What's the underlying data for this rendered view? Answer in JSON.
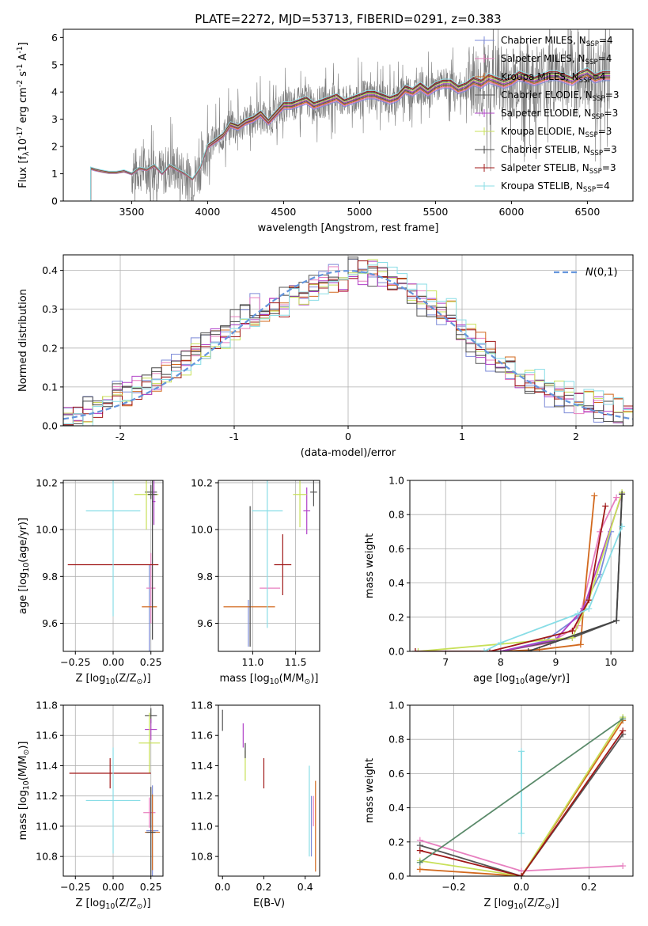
{
  "figure_title": "PLATE=2272, MJD=53713, FIBERID=0291, z=0.383",
  "colors": {
    "Chabrier MILES": "#7d8bd8",
    "Salpeter MILES": "#e77fbf",
    "Kroupa MILES": "#d2691e",
    "Chabrier ELODIE": "#555555",
    "Salpeter ELODIE": "#b040c8",
    "Kroupa ELODIE": "#c8e058",
    "Chabrier STELIB": "#444444",
    "Salpeter STELIB": "#a01818",
    "Kroupa STELIB": "#88dde6",
    "gauss": "#6495dc",
    "data": "#7a7a7a",
    "extra": "#5a8a6a"
  },
  "chart_data": [
    {
      "id": "spectrum",
      "type": "line",
      "xlabel": "wavelength [Angstrom, rest frame]",
      "ylabel": "Flux [f$_\\lambda$10$^{-17}$ erg cm$^{-2}$ s$^{-1}$ A$^{-1}$]",
      "xlim": [
        3050,
        6800
      ],
      "ylim": [
        0,
        6.3
      ],
      "xticks": [
        3500,
        4000,
        4500,
        5000,
        5500,
        6000,
        6500
      ],
      "yticks": [
        0,
        1,
        2,
        3,
        4,
        5,
        6
      ],
      "grid": false,
      "legend": "upper right",
      "legend_entries": [
        "Chabrier MILES, N$_{SSP}$=4",
        "Salpeter MILES, N$_{SSP}$=4",
        "Kroupa MILES, N$_{SSP}$=4",
        "Chabrier ELODIE, N$_{SSP}$=3",
        "Salpeter ELODIE, N$_{SSP}$=3",
        "Kroupa ELODIE, N$_{SSP}$=3",
        "Chabrier STELIB, N$_{SSP}$=3",
        "Salpeter STELIB, N$_{SSP}$=3",
        "Kroupa STELIB, N$_{SSP}$=4"
      ],
      "model_continuum": {
        "x": [
          3230,
          3260,
          3300,
          3350,
          3400,
          3450,
          3500,
          3550,
          3600,
          3650,
          3700,
          3750,
          3800,
          3850,
          3900,
          3950,
          4000,
          4050,
          4100,
          4150,
          4200,
          4250,
          4300,
          4350,
          4400,
          4450,
          4500,
          4550,
          4600,
          4650,
          4700,
          4750,
          4800,
          4850,
          4900,
          4950,
          5000,
          5050,
          5100,
          5150,
          5200,
          5250,
          5300,
          5350,
          5400,
          5450,
          5500,
          5550,
          5600,
          5650,
          5700,
          5750,
          5800,
          5850,
          5900,
          5950,
          6000,
          6050,
          6100,
          6150,
          6200,
          6250,
          6300,
          6350,
          6400,
          6450,
          6500,
          6550,
          6600,
          6650
        ],
        "y": [
          1.2,
          1.15,
          1.1,
          1.05,
          1.05,
          1.1,
          1.0,
          1.2,
          1.15,
          1.3,
          1.0,
          1.3,
          1.15,
          1.0,
          0.8,
          1.2,
          2.0,
          2.2,
          2.4,
          2.8,
          2.7,
          2.9,
          3.0,
          3.2,
          2.9,
          3.2,
          3.5,
          3.5,
          3.6,
          3.7,
          3.5,
          3.6,
          3.7,
          3.8,
          3.6,
          3.7,
          3.8,
          3.9,
          3.9,
          3.8,
          3.7,
          3.8,
          4.1,
          4.0,
          4.2,
          4.0,
          4.2,
          4.3,
          4.3,
          4.1,
          4.2,
          4.4,
          4.3,
          4.5,
          4.4,
          4.3,
          4.4,
          4.6,
          4.5,
          4.4,
          4.5,
          4.6,
          4.6,
          4.5,
          4.4,
          4.6,
          4.7,
          4.5,
          4.6,
          4.6
        ]
      }
    },
    {
      "id": "residuals",
      "type": "line",
      "xlabel": "(data-model)/error",
      "ylabel": "Normed distribution",
      "xlim": [
        -2.5,
        2.5
      ],
      "ylim": [
        0,
        0.44
      ],
      "xticks": [
        -2,
        -1,
        0,
        1,
        2
      ],
      "yticks": [
        0.0,
        0.1,
        0.2,
        0.3,
        0.4
      ],
      "grid": true,
      "legend": "upper right",
      "gauss_label": "$\\mathcal{N}(0,1)$",
      "hist_base": [
        0.02,
        0.03,
        0.04,
        0.05,
        0.07,
        0.08,
        0.09,
        0.1,
        0.11,
        0.12,
        0.14,
        0.15,
        0.17,
        0.2,
        0.21,
        0.23,
        0.24,
        0.26,
        0.28,
        0.3,
        0.3,
        0.31,
        0.32,
        0.35,
        0.34,
        0.37,
        0.36,
        0.38,
        0.37,
        0.4,
        0.39,
        0.4,
        0.38,
        0.37,
        0.36,
        0.34,
        0.32,
        0.31,
        0.29,
        0.28,
        0.24,
        0.22,
        0.2,
        0.18,
        0.16,
        0.14,
        0.12,
        0.11,
        0.1,
        0.09,
        0.08,
        0.07,
        0.06,
        0.05,
        0.045,
        0.04,
        0.035,
        0.03
      ]
    },
    {
      "id": "age_vs_Z",
      "type": "scatter",
      "xlabel": "Z [log$_{10}$(Z/Z$_\\odot$)]",
      "ylabel": "age  [log$_{10}$(age/yr)]",
      "xlim": [
        -0.33,
        0.33
      ],
      "ylim": [
        9.48,
        10.21
      ],
      "xticks": [
        -0.25,
        0.0,
        0.25
      ],
      "xticklabels": [
        "−0.25",
        "0.00",
        "0.25"
      ],
      "yticks": [
        9.6,
        9.8,
        10.0,
        10.2
      ],
      "grid": true,
      "points": [
        {
          "model": "Chabrier MILES",
          "x": 0.24,
          "y": 9.65,
          "xerr": 0.0,
          "yerr": 0.2
        },
        {
          "model": "Salpeter MILES",
          "x": 0.25,
          "y": 9.75,
          "xerr": 0.03,
          "yerr": 0.15
        },
        {
          "model": "Kroupa MILES",
          "x": 0.24,
          "y": 9.67,
          "xerr": 0.05,
          "yerr": 0.0
        },
        {
          "model": "Chabrier ELODIE",
          "x": 0.25,
          "y": 10.16,
          "xerr": 0.04,
          "yerr": 0.03
        },
        {
          "model": "Salpeter ELODIE",
          "x": 0.27,
          "y": 10.12,
          "xerr": 0.01,
          "yerr": 0.1
        },
        {
          "model": "Kroupa ELODIE",
          "x": 0.22,
          "y": 10.15,
          "xerr": 0.08,
          "yerr": 0.15
        },
        {
          "model": "Chabrier STELIB",
          "x": 0.26,
          "y": 10.15,
          "xerr": 0.03,
          "yerr": 0.62
        },
        {
          "model": "Salpeter STELIB",
          "x": 0.0,
          "y": 9.85,
          "xerr": 0.3,
          "yerr": 0.0
        },
        {
          "model": "Kroupa STELIB",
          "x": 0.0,
          "y": 10.08,
          "xerr": 0.18,
          "yerr": 0.45
        }
      ]
    },
    {
      "id": "age_vs_mass",
      "type": "scatter",
      "xlabel": "mass [log$_{10}$(M/M$_\\odot$)]",
      "ylabel": "",
      "xlim": [
        10.6,
        11.78
      ],
      "ylim": [
        9.48,
        10.21
      ],
      "xticks": [
        11.0,
        11.5
      ],
      "xticklabels": [
        "11.0",
        "11.5"
      ],
      "yticks": [
        9.6,
        9.8,
        10.0,
        10.2
      ],
      "grid": true,
      "points": [
        {
          "model": "Chabrier MILES",
          "x": 10.95,
          "y": 9.6,
          "xerr": 0.0,
          "yerr": 0.1
        },
        {
          "model": "Salpeter MILES",
          "x": 11.2,
          "y": 9.75,
          "xerr": 0.12,
          "yerr": 0.0
        },
        {
          "model": "Kroupa MILES",
          "x": 10.96,
          "y": 9.67,
          "xerr": 0.3,
          "yerr": 0.0
        },
        {
          "model": "Chabrier ELODIE",
          "x": 11.71,
          "y": 10.16,
          "xerr": 0.04,
          "yerr": 0.06
        },
        {
          "model": "Salpeter ELODIE",
          "x": 11.63,
          "y": 10.08,
          "xerr": 0.04,
          "yerr": 0.1
        },
        {
          "model": "Kroupa ELODIE",
          "x": 11.55,
          "y": 10.15,
          "xerr": 0.08,
          "yerr": 0.14
        },
        {
          "model": "Chabrier STELIB",
          "x": 10.97,
          "y": 9.8,
          "xerr": 0.0,
          "yerr": 0.3
        },
        {
          "model": "Salpeter STELIB",
          "x": 11.35,
          "y": 9.85,
          "xerr": 0.1,
          "yerr": 0.13
        },
        {
          "model": "Kroupa STELIB",
          "x": 11.17,
          "y": 10.08,
          "xerr": 0.18,
          "yerr": 0.5
        }
      ]
    },
    {
      "id": "cum_mass_weight_age",
      "type": "line",
      "xlabel": "age  [log$_{10}$(age/yr)]",
      "ylabel": "mass weight",
      "xlim": [
        6.35,
        10.4
      ],
      "ylim": [
        0,
        1.0
      ],
      "xticks": [
        7,
        8,
        9,
        10
      ],
      "yticks": [
        0.0,
        0.2,
        0.4,
        0.6,
        0.8,
        1.0
      ],
      "grid": true,
      "series": [
        {
          "model": "Chabrier MILES",
          "x": [
            8.0,
            8.8,
            9.4,
            9.8,
            10.0
          ],
          "y": [
            0.0,
            0.06,
            0.2,
            0.45,
            0.7
          ]
        },
        {
          "model": "Salpeter MILES",
          "x": [
            8.0,
            8.9,
            9.4,
            9.8,
            10.1
          ],
          "y": [
            0.0,
            0.05,
            0.15,
            0.7,
            0.9
          ]
        },
        {
          "model": "Kroupa MILES",
          "x": [
            8.0,
            8.7,
            9.45,
            9.5,
            9.7
          ],
          "y": [
            0.0,
            0.01,
            0.04,
            0.25,
            0.91
          ]
        },
        {
          "model": "Chabrier ELODIE",
          "x": [
            8.0,
            9.3,
            10.1,
            10.2
          ],
          "y": [
            0.0,
            0.08,
            0.18,
            0.92
          ]
        },
        {
          "model": "Salpeter ELODIE",
          "x": [
            8.0,
            9.0,
            9.5,
            10.2
          ],
          "y": [
            0.0,
            0.07,
            0.25,
            0.92
          ]
        },
        {
          "model": "Kroupa ELODIE",
          "x": [
            6.5,
            9.3,
            9.6,
            10.2
          ],
          "y": [
            0.0,
            0.08,
            0.3,
            0.93
          ]
        },
        {
          "model": "Chabrier STELIB",
          "x": [
            6.45,
            8.5,
            10.1,
            10.2
          ],
          "y": [
            0.0,
            0.0,
            0.18,
            0.92
          ]
        },
        {
          "model": "Salpeter STELIB",
          "x": [
            6.45,
            7.8,
            9.3,
            9.6,
            9.9
          ],
          "y": [
            0.0,
            0.0,
            0.12,
            0.3,
            0.85
          ]
        },
        {
          "model": "Kroupa STELIB",
          "x": [
            7.7,
            8.0,
            9.4,
            9.6,
            10.2
          ],
          "y": [
            0.0,
            0.05,
            0.22,
            0.25,
            0.73
          ]
        }
      ]
    },
    {
      "id": "mass_vs_Z",
      "type": "scatter",
      "xlabel": "Z [log$_{10}$(Z/Z$_\\odot$)]",
      "ylabel": "mass [log$_{10}$(M/M$_\\odot$)]",
      "xlim": [
        -0.33,
        0.33
      ],
      "ylim": [
        10.67,
        11.8
      ],
      "xticks": [
        -0.25,
        0.0,
        0.25
      ],
      "xticklabels": [
        "−0.25",
        "0.00",
        "0.25"
      ],
      "yticks": [
        10.8,
        11.0,
        11.2,
        11.4,
        11.6,
        11.8
      ],
      "grid": true,
      "points": [
        {
          "model": "Chabrier MILES",
          "x": 0.26,
          "y": 10.97,
          "xerr": 0.04,
          "yerr": 0.3
        },
        {
          "model": "Salpeter MILES",
          "x": 0.24,
          "y": 11.09,
          "xerr": 0.04,
          "yerr": 0.1
        },
        {
          "model": "Kroupa MILES",
          "x": 0.26,
          "y": 10.96,
          "xerr": 0.05,
          "yerr": 0.25
        },
        {
          "model": "Chabrier ELODIE",
          "x": 0.25,
          "y": 11.73,
          "xerr": 0.04,
          "yerr": 0.05
        },
        {
          "model": "Salpeter ELODIE",
          "x": 0.25,
          "y": 11.64,
          "xerr": 0.04,
          "yerr": 0.07
        },
        {
          "model": "Kroupa ELODIE",
          "x": 0.24,
          "y": 11.55,
          "xerr": 0.07,
          "yerr": 0.2
        },
        {
          "model": "Chabrier STELIB",
          "x": 0.25,
          "y": 10.96,
          "xerr": 0.03,
          "yerr": 0.3
        },
        {
          "model": "Salpeter STELIB",
          "x": -0.02,
          "y": 11.35,
          "xerr": 0.27,
          "yerr": 0.1
        },
        {
          "model": "Kroupa STELIB",
          "x": 0.0,
          "y": 11.17,
          "xerr": 0.18,
          "yerr": 0.35
        }
      ]
    },
    {
      "id": "mass_vs_EBV",
      "type": "scatter",
      "xlabel": "E(B-V)",
      "ylabel": "",
      "xlim": [
        -0.02,
        0.47
      ],
      "ylim": [
        10.67,
        11.8
      ],
      "xticks": [
        0.0,
        0.2,
        0.4
      ],
      "xticklabels": [
        "0.0",
        "0.2",
        "0.4"
      ],
      "yticks": [
        10.8,
        11.0,
        11.2,
        11.4,
        11.6,
        11.8
      ],
      "grid": false,
      "points": [
        {
          "model": "Chabrier MILES",
          "x": 0.43,
          "y": 11.0,
          "xerr": 0.0,
          "yerr": 0.2
        },
        {
          "model": "Salpeter MILES",
          "x": 0.44,
          "y": 11.1,
          "xerr": 0.0,
          "yerr": 0.1
        },
        {
          "model": "Kroupa MILES",
          "x": 0.45,
          "y": 11.0,
          "xerr": 0.0,
          "yerr": 0.3
        },
        {
          "model": "Chabrier ELODIE",
          "x": 0.0,
          "y": 11.7,
          "xerr": 0.0,
          "yerr": 0.07
        },
        {
          "model": "Salpeter ELODIE",
          "x": 0.1,
          "y": 11.6,
          "xerr": 0.0,
          "yerr": 0.08
        },
        {
          "model": "Kroupa ELODIE",
          "x": 0.11,
          "y": 11.4,
          "xerr": 0.0,
          "yerr": 0.1
        },
        {
          "model": "Chabrier STELIB",
          "x": 0.11,
          "y": 11.5,
          "xerr": 0.0,
          "yerr": 0.05
        },
        {
          "model": "Salpeter STELIB",
          "x": 0.2,
          "y": 11.35,
          "xerr": 0.0,
          "yerr": 0.1
        },
        {
          "model": "Kroupa STELIB",
          "x": 0.42,
          "y": 11.1,
          "xerr": 0.0,
          "yerr": 0.3
        }
      ]
    },
    {
      "id": "cum_mass_weight_Z",
      "type": "line",
      "xlabel": "Z [log$_{10}$(Z/Z$_\\odot$)]",
      "ylabel": "mass weight",
      "xlim": [
        -0.33,
        0.33
      ],
      "ylim": [
        0,
        1.0
      ],
      "xticks": [
        -0.2,
        0.0,
        0.2
      ],
      "xticklabels": [
        "−0.2",
        "0.0",
        "0.2"
      ],
      "yticks": [
        0.0,
        0.2,
        0.4,
        0.6,
        0.8,
        1.0
      ],
      "grid": true,
      "series": [
        {
          "model": "Salpeter MILES",
          "x": [
            -0.3,
            0.0,
            0.3
          ],
          "y": [
            0.21,
            0.03,
            0.06
          ]
        },
        {
          "model": "Kroupa MILES",
          "x": [
            -0.3,
            0.0,
            0.3
          ],
          "y": [
            0.04,
            0.0,
            0.91
          ]
        },
        {
          "model": "Chabrier ELODIE",
          "x": [
            -0.3,
            0.0,
            0.3
          ],
          "y": [
            0.18,
            0.0,
            0.83
          ]
        },
        {
          "model": "Kroupa ELODIE",
          "x": [
            -0.3,
            0.0,
            0.3
          ],
          "y": [
            0.09,
            0.0,
            0.93
          ]
        },
        {
          "model": "Salpeter STELIB",
          "x": [
            -0.3,
            0.0,
            0.3
          ],
          "y": [
            0.15,
            0.0,
            0.85
          ]
        },
        {
          "model": "Kroupa STELIB",
          "x": [
            0.0,
            0.0
          ],
          "y": [
            0.25,
            0.73
          ]
        },
        {
          "model": "extra",
          "x": [
            -0.3,
            0.3
          ],
          "y": [
            0.08,
            0.92
          ]
        }
      ]
    }
  ]
}
